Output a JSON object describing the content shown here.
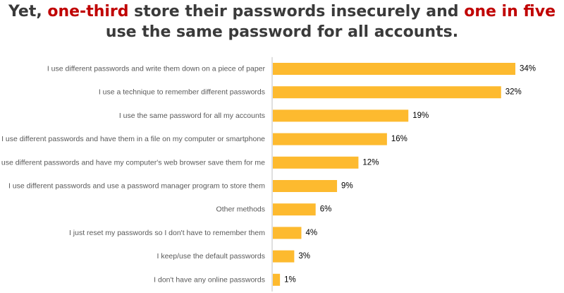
{
  "headline": {
    "parts": [
      {
        "text": "Yet, ",
        "highlight": false
      },
      {
        "text": "one-third",
        "highlight": true
      },
      {
        "text": " store their passwords insecurely and ",
        "highlight": false
      },
      {
        "text": "one in five",
        "highlight": true
      },
      {
        "text": " use the same password for all accounts.",
        "highlight": false
      }
    ]
  },
  "colors": {
    "bar": "#FDBA2F",
    "highlight": "#C00000",
    "text": "#3A3A3A",
    "axis": "#BFBFBF"
  },
  "chart_data": {
    "type": "bar",
    "orientation": "horizontal",
    "title": "",
    "xlabel": "",
    "ylabel": "",
    "xlim": [
      0,
      34
    ],
    "grid": false,
    "legend": "none",
    "categories": [
      "I use different passwords and write them down on a piece of paper",
      "I use a technique to remember different passwords",
      "I use the same password for all my accounts",
      "I use different passwords and have them in a file on my computer or smartphone",
      "I use different passwords and have my computer's web browser save them for me",
      "I use different passwords and use a password manager program to store them",
      "Other methods",
      "I just reset my passwords so I don't have to remember them",
      "I keep/use the default passwords",
      "I don't have any online passwords"
    ],
    "values": [
      34,
      32,
      19,
      16,
      12,
      9,
      6,
      4,
      3,
      1
    ],
    "value_labels": [
      "34%",
      "32%",
      "19%",
      "16%",
      "12%",
      "9%",
      "6%",
      "4%",
      "3%",
      "1%"
    ]
  }
}
